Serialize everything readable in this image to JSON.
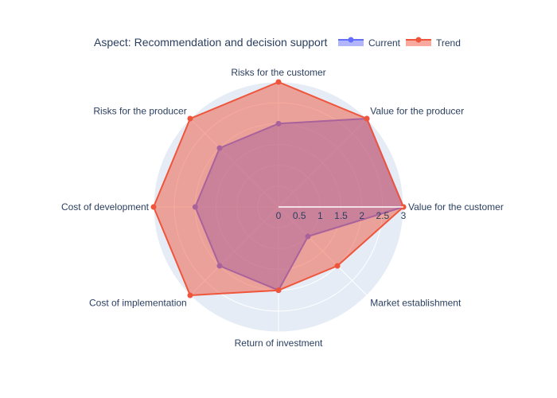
{
  "chart_data": {
    "type": "radar",
    "title": "Aspect: Recommendation and decision support",
    "categories": [
      "Value for the customer",
      "Value for the producer",
      "Risks for the customer",
      "Risks for the producer",
      "Cost of development",
      "Cost of implementation",
      "Return of investment",
      "Market establishment"
    ],
    "radial_range": [
      0,
      3
    ],
    "radial_ticks": [
      "0",
      "0.5",
      "1",
      "1.5",
      "2",
      "2.5",
      "3"
    ],
    "radial_tick_values": [
      0,
      0.5,
      1,
      1.5,
      2,
      2.5,
      3
    ],
    "legend_position": "top-right",
    "series": [
      {
        "name": "Current",
        "values": [
          3,
          3,
          2,
          2,
          2,
          2,
          2,
          1
        ],
        "color": "#636efa"
      },
      {
        "name": "Trend",
        "values": [
          3,
          3,
          3,
          3,
          3,
          3,
          2,
          2
        ],
        "color": "#ef553b"
      }
    ]
  },
  "colors": {
    "polar_bg": "#e5ecf6",
    "grid": "#ffffff",
    "text": "#2a3f5f"
  }
}
